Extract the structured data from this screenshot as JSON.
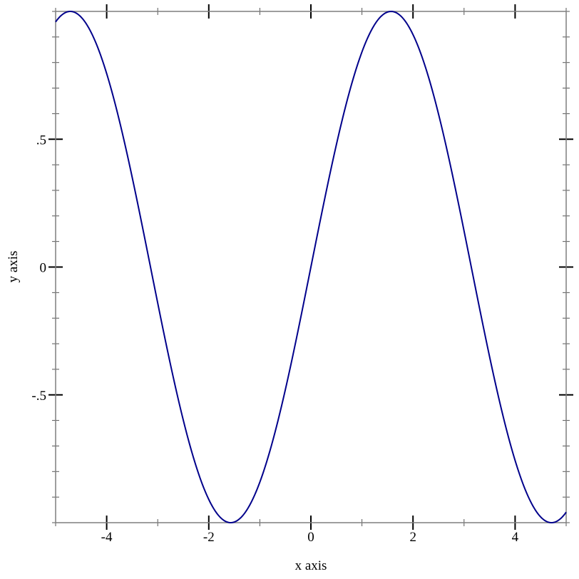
{
  "chart_data": {
    "type": "line",
    "title": "",
    "xlabel": "x axis",
    "ylabel": "y axis",
    "xlim": [
      -5,
      5
    ],
    "ylim": [
      -1,
      1
    ],
    "grid": false,
    "x_ticks": [
      {
        "value": -4,
        "label": "-4"
      },
      {
        "value": -2,
        "label": "-2"
      },
      {
        "value": 0,
        "label": "0"
      },
      {
        "value": 2,
        "label": "2"
      },
      {
        "value": 4,
        "label": "4"
      }
    ],
    "x_minor_ticks": [
      -5,
      -3,
      -1,
      1,
      3,
      5
    ],
    "y_ticks": [
      {
        "value": 0.5,
        "label": ".5"
      },
      {
        "value": 0,
        "label": "0"
      },
      {
        "value": -0.5,
        "label": "-.5"
      }
    ],
    "y_minor_ticks": [
      -1,
      -0.9,
      -0.8,
      -0.7,
      -0.6,
      -0.4,
      -0.3,
      -0.2,
      -0.1,
      0.1,
      0.2,
      0.3,
      0.4,
      0.6,
      0.7,
      0.8,
      0.9,
      1
    ],
    "series": [
      {
        "function": "sin(x)",
        "color": "#00008b",
        "x": [
          -5,
          -4.712,
          -4,
          -3.142,
          -2,
          -1.571,
          -1,
          0,
          1,
          1.571,
          2,
          3.142,
          4,
          4.712,
          5
        ],
        "y": [
          0.959,
          1,
          0.757,
          0,
          -0.909,
          -1,
          -0.841,
          0,
          0.841,
          1,
          0.909,
          0,
          -0.757,
          -1,
          -0.959
        ]
      }
    ]
  }
}
